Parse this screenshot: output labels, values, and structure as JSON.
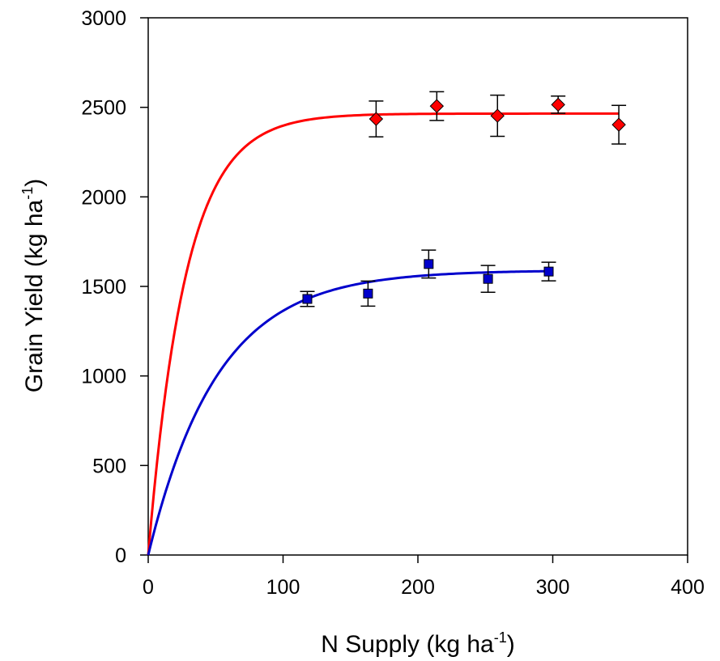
{
  "chart_data": {
    "type": "scatter",
    "title": "",
    "xlabel": {
      "main": "N Supply (kg ha",
      "sup": "-1",
      "end": ")"
    },
    "ylabel": {
      "main": "Grain Yield (kg ha",
      "sup": "-1",
      "end": ")"
    },
    "xlim": [
      0,
      400
    ],
    "ylim": [
      0,
      3000
    ],
    "x_ticks": [
      0,
      100,
      200,
      300,
      400
    ],
    "y_ticks": [
      0,
      500,
      1000,
      1500,
      2000,
      2500,
      3000
    ],
    "grid": false,
    "legend": "none",
    "series": [
      {
        "marker": "diamond",
        "color": "#ff0000",
        "points": [
          {
            "x": 169,
            "y": 2435,
            "err": 100
          },
          {
            "x": 214,
            "y": 2507,
            "err": 80
          },
          {
            "x": 259,
            "y": 2453,
            "err": 115
          },
          {
            "x": 304,
            "y": 2515,
            "err": 48
          },
          {
            "x": 349,
            "y": 2403,
            "err": 108
          }
        ],
        "fit": {
          "curve": "exponential rise to maximum",
          "ymax": 2465,
          "k": 0.036,
          "x_range": [
            0,
            349
          ]
        }
      },
      {
        "marker": "square",
        "color": "#0000cc",
        "points": [
          {
            "x": 118,
            "y": 1430,
            "err": 42
          },
          {
            "x": 163,
            "y": 1460,
            "err": 70
          },
          {
            "x": 208,
            "y": 1625,
            "err": 78
          },
          {
            "x": 252,
            "y": 1542,
            "err": 75
          },
          {
            "x": 297,
            "y": 1583,
            "err": 52
          }
        ],
        "fit": {
          "curve": "exponential rise to maximum",
          "ymax": 1590,
          "k": 0.0195,
          "x_range": [
            0,
            297
          ]
        }
      }
    ]
  }
}
